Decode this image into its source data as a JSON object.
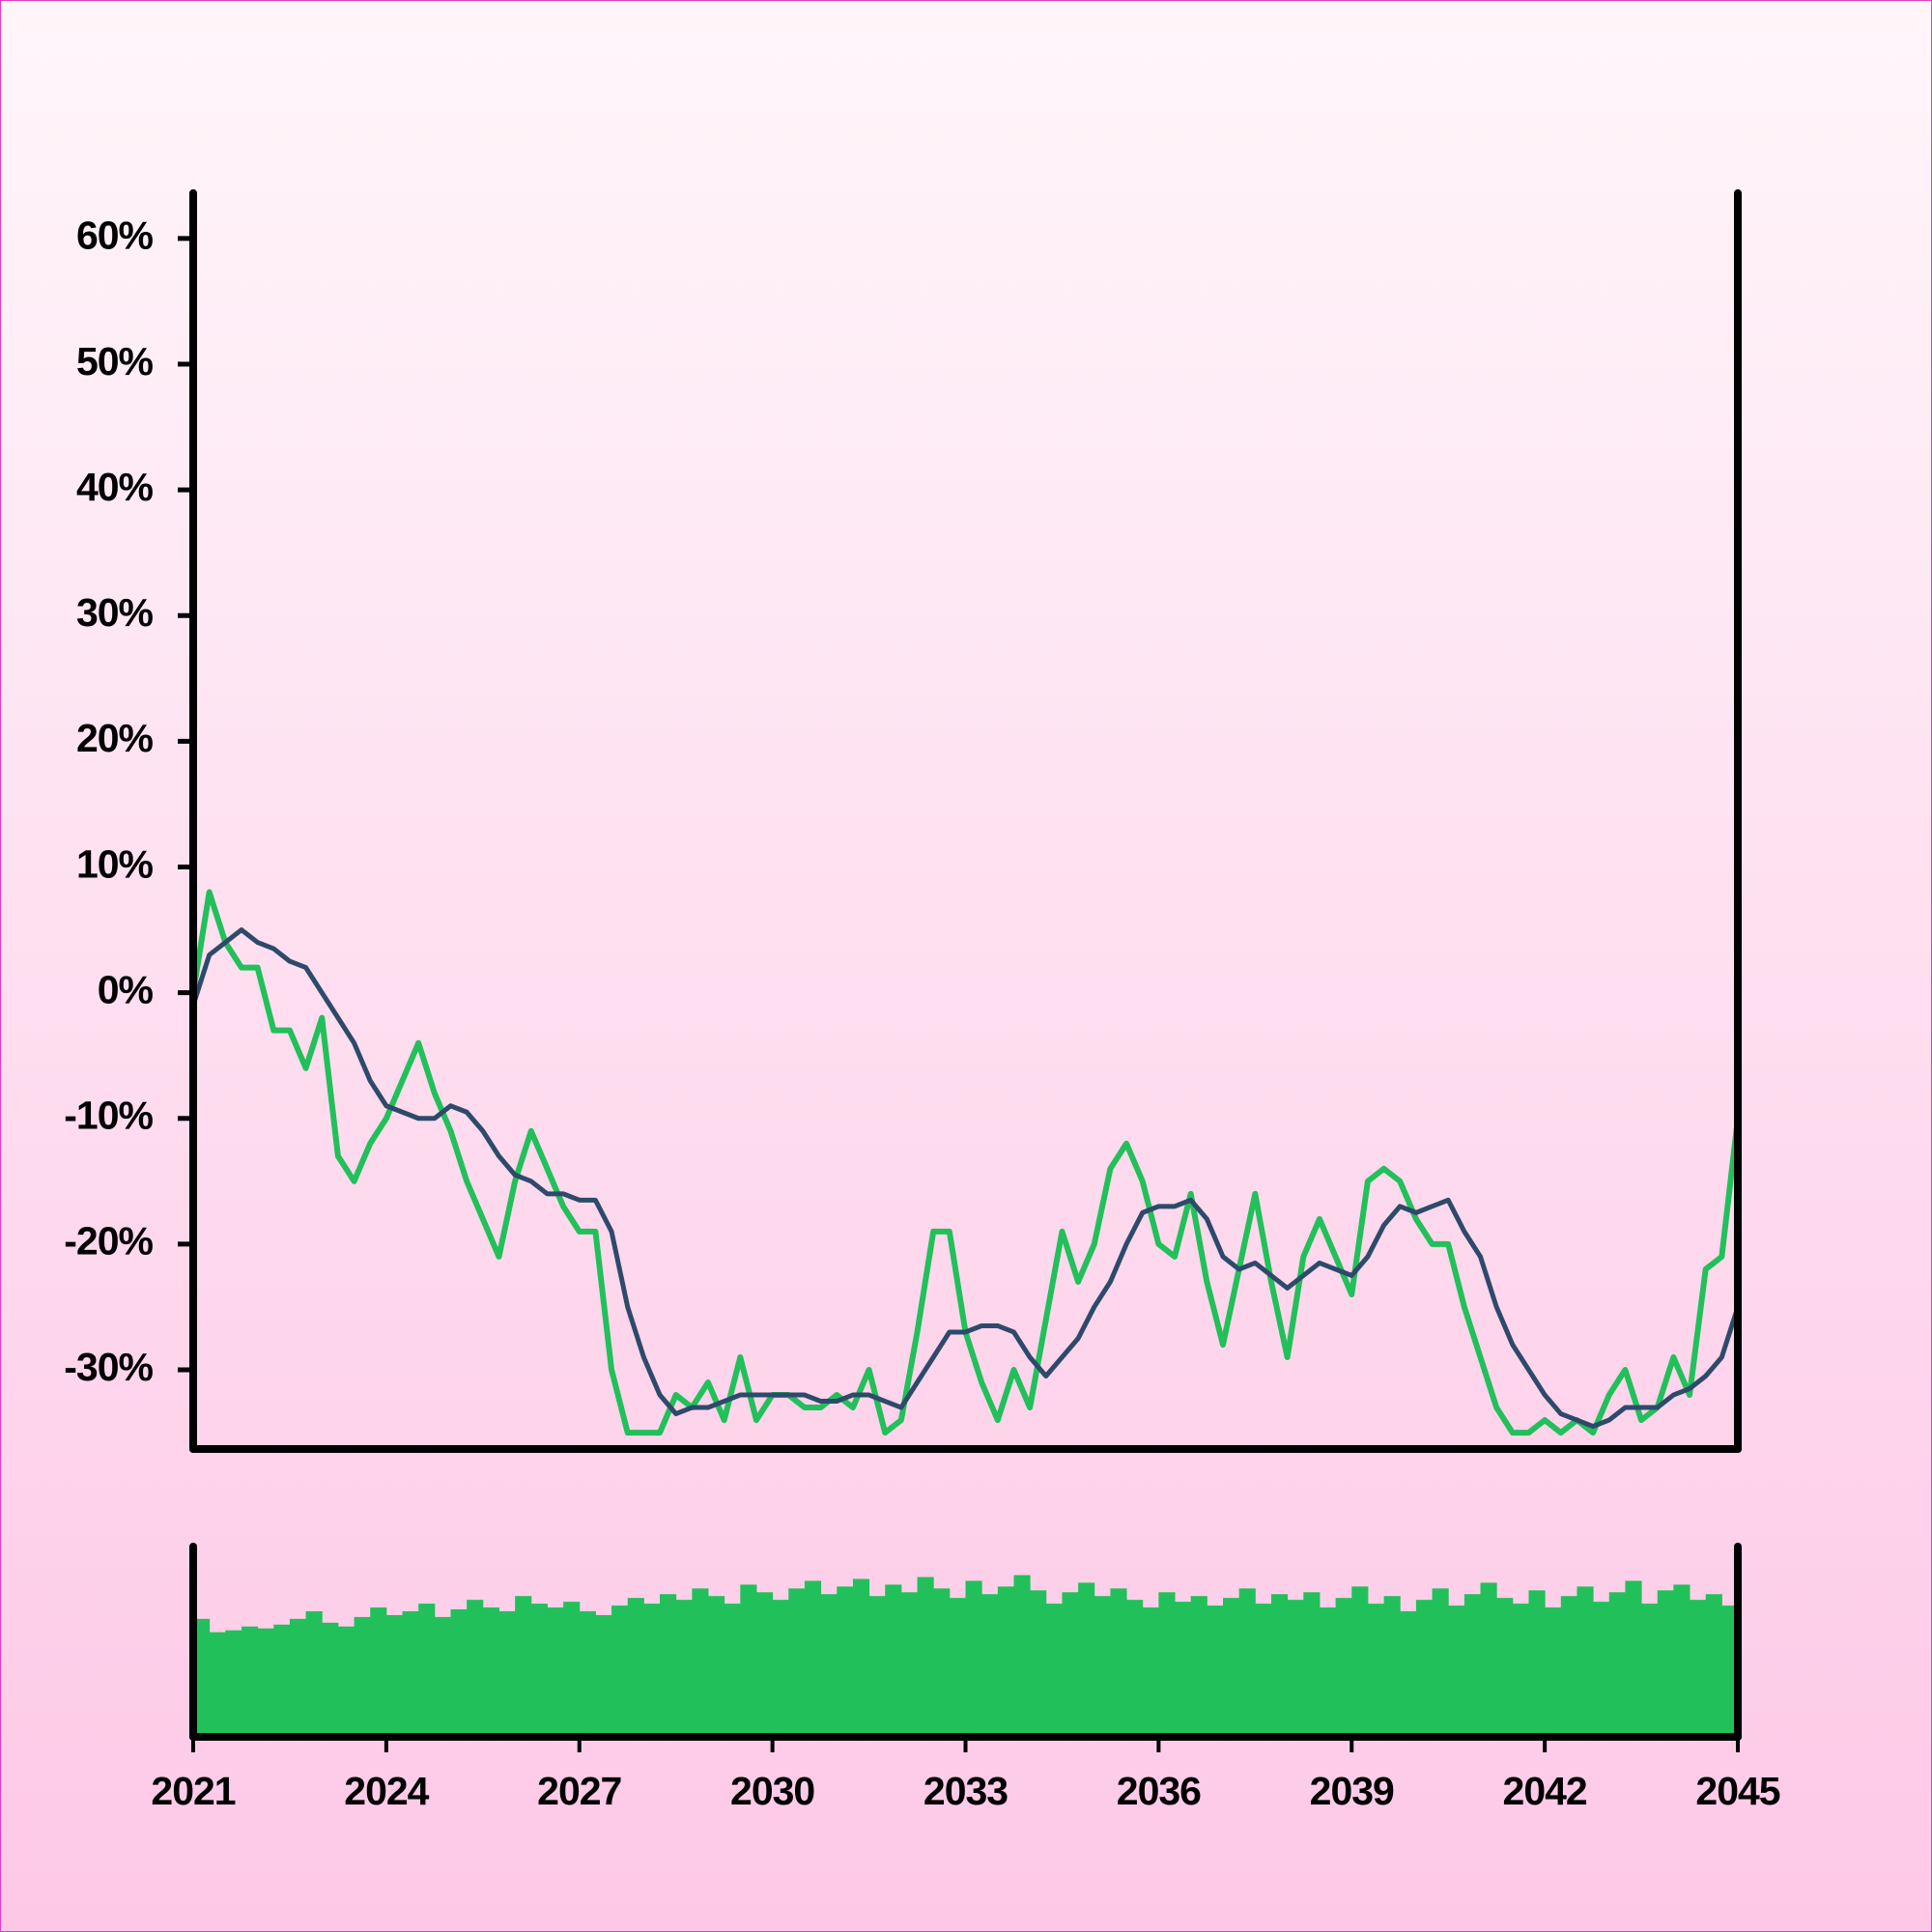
{
  "chart_data": [
    {
      "type": "line",
      "x": [
        2021,
        2021.25,
        2021.5,
        2021.75,
        2022,
        2022.25,
        2022.5,
        2022.75,
        2023,
        2023.25,
        2023.5,
        2023.75,
        2024,
        2024.25,
        2024.5,
        2024.75,
        2025,
        2025.25,
        2025.5,
        2025.75,
        2026,
        2026.25,
        2026.5,
        2026.75,
        2027,
        2027.25,
        2027.5,
        2027.75,
        2028,
        2028.25,
        2028.5,
        2028.75,
        2029,
        2029.25,
        2029.5,
        2029.75,
        2030,
        2030.25,
        2030.5,
        2030.75,
        2031,
        2031.25,
        2031.5,
        2031.75,
        2032,
        2032.25,
        2032.5,
        2032.75,
        2033,
        2033.25,
        2033.5,
        2033.75,
        2034,
        2034.25,
        2034.5,
        2034.75,
        2035,
        2035.25,
        2035.5,
        2035.75,
        2036,
        2036.25,
        2036.5,
        2036.75,
        2037,
        2037.25,
        2037.5,
        2037.75,
        2038,
        2038.25,
        2038.5,
        2038.75,
        2039,
        2039.25,
        2039.5,
        2039.75,
        2040,
        2040.25,
        2040.5,
        2040.75,
        2041,
        2041.25,
        2041.5,
        2041.75,
        2042,
        2042.25,
        2042.5,
        2042.75,
        2043,
        2043.25,
        2043.5,
        2043.75,
        2044,
        2044.25,
        2044.5,
        2044.75,
        2045
      ],
      "series": [
        {
          "color": "#22c05a",
          "values": [
            0,
            8,
            4,
            2,
            2,
            -3,
            -3,
            -6,
            -2,
            -13,
            -15,
            -12,
            -10,
            -7,
            -4,
            -8,
            -11,
            -15,
            -18,
            -21,
            -15,
            -11,
            -14,
            -17,
            -19,
            -19,
            -30,
            -35,
            -35,
            -35,
            -32,
            -33,
            -31,
            -34,
            -29,
            -34,
            -32,
            -32,
            -33,
            -33,
            -32,
            -33,
            -30,
            -35,
            -34,
            -27,
            -19,
            -19,
            -27,
            -31,
            -34,
            -30,
            -33,
            -26,
            -19,
            -23,
            -20,
            -14,
            -12,
            -15,
            -20,
            -21,
            -16,
            -23,
            -28,
            -22,
            -16,
            -23,
            -29,
            -21,
            -18,
            -21,
            -24,
            -15,
            -14,
            -15,
            -18,
            -20,
            -20,
            -25,
            -29,
            -33,
            -35,
            -35,
            -34,
            -35,
            -34,
            -35,
            -32,
            -30,
            -34,
            -33,
            -29,
            -32,
            -22,
            -21,
            -10
          ]
        },
        {
          "color": "#2e4a6b",
          "values": [
            -1,
            3,
            4,
            5,
            4,
            3.5,
            2.5,
            2,
            0,
            -2,
            -4,
            -7,
            -9,
            -9.5,
            -10,
            -10,
            -9,
            -9.5,
            -11,
            -13,
            -14.5,
            -15,
            -16,
            -16,
            -16.5,
            -16.5,
            -19,
            -25,
            -29,
            -32,
            -33.5,
            -33,
            -33,
            -32.5,
            -32,
            -32,
            -32,
            -32,
            -32,
            -32.5,
            -32.5,
            -32,
            -32,
            -32.5,
            -33,
            -31,
            -29,
            -27,
            -27,
            -26.5,
            -26.5,
            -27,
            -29,
            -30.5,
            -29,
            -27.5,
            -25,
            -23,
            -20,
            -17.5,
            -17,
            -17,
            -16.5,
            -18,
            -21,
            -22,
            -21.5,
            -22.5,
            -23.5,
            -22.5,
            -21.5,
            -22,
            -22.5,
            -21,
            -18.5,
            -17,
            -17.5,
            -17,
            -16.5,
            -19,
            -21,
            -25,
            -28,
            -30,
            -32,
            -33.5,
            -34,
            -34.5,
            -34,
            -33,
            -33,
            -33,
            -32,
            -31.5,
            -30.5,
            -29,
            -25
          ]
        }
      ],
      "xlim": [
        2021,
        2045
      ],
      "ylim": [
        -36.3,
        63.6
      ],
      "yticks": [
        {
          "value": -30,
          "label": "-30%"
        },
        {
          "value": -20,
          "label": "-20%"
        },
        {
          "value": -10,
          "label": "-10%"
        },
        {
          "value": 0,
          "label": "0%"
        },
        {
          "value": 10,
          "label": "10%"
        },
        {
          "value": 20,
          "label": "20%"
        },
        {
          "value": 30,
          "label": "30%"
        },
        {
          "value": 40,
          "label": "40%"
        },
        {
          "value": 50,
          "label": "50%"
        },
        {
          "value": 60,
          "label": "60%"
        }
      ]
    },
    {
      "type": "bar",
      "x": [
        2021,
        2021.25,
        2021.5,
        2021.75,
        2022,
        2022.25,
        2022.5,
        2022.75,
        2023,
        2023.25,
        2023.5,
        2023.75,
        2024,
        2024.25,
        2024.5,
        2024.75,
        2025,
        2025.25,
        2025.5,
        2025.75,
        2026,
        2026.25,
        2026.5,
        2026.75,
        2027,
        2027.25,
        2027.5,
        2027.75,
        2028,
        2028.25,
        2028.5,
        2028.75,
        2029,
        2029.25,
        2029.5,
        2029.75,
        2030,
        2030.25,
        2030.5,
        2030.75,
        2031,
        2031.25,
        2031.5,
        2031.75,
        2032,
        2032.25,
        2032.5,
        2032.75,
        2033,
        2033.25,
        2033.5,
        2033.75,
        2034,
        2034.25,
        2034.5,
        2034.75,
        2035,
        2035.25,
        2035.5,
        2035.75,
        2036,
        2036.25,
        2036.5,
        2036.75,
        2037,
        2037.25,
        2037.5,
        2037.75,
        2038,
        2038.25,
        2038.5,
        2038.75,
        2039,
        2039.25,
        2039.5,
        2039.75,
        2040,
        2040.25,
        2040.5,
        2040.75,
        2041,
        2041.25,
        2041.5,
        2041.75,
        2042,
        2042.25,
        2042.5,
        2042.75,
        2043,
        2043.25,
        2043.5,
        2043.75,
        2044,
        2044.25,
        2044.5,
        2044.75,
        2045
      ],
      "values": [
        62,
        55,
        56,
        58,
        57,
        59,
        62,
        66,
        60,
        58,
        63,
        68,
        64,
        66,
        70,
        63,
        67,
        72,
        68,
        66,
        74,
        70,
        68,
        71,
        66,
        64,
        69,
        73,
        70,
        75,
        72,
        78,
        74,
        70,
        80,
        76,
        72,
        78,
        82,
        75,
        79,
        83,
        74,
        80,
        76,
        84,
        78,
        73,
        82,
        75,
        79,
        85,
        77,
        70,
        76,
        81,
        74,
        78,
        72,
        68,
        76,
        71,
        74,
        69,
        73,
        78,
        70,
        75,
        72,
        76,
        68,
        73,
        79,
        70,
        74,
        66,
        72,
        78,
        69,
        75,
        81,
        73,
        70,
        77,
        68,
        74,
        79,
        71,
        76,
        82,
        70,
        77,
        80,
        72,
        75,
        69,
        62
      ],
      "color": "#22c05a",
      "xlim": [
        2021,
        2045
      ],
      "ylim": [
        0,
        100
      ],
      "xticks": [
        2021,
        2024,
        2027,
        2030,
        2033,
        2036,
        2039,
        2042,
        2045
      ]
    }
  ]
}
